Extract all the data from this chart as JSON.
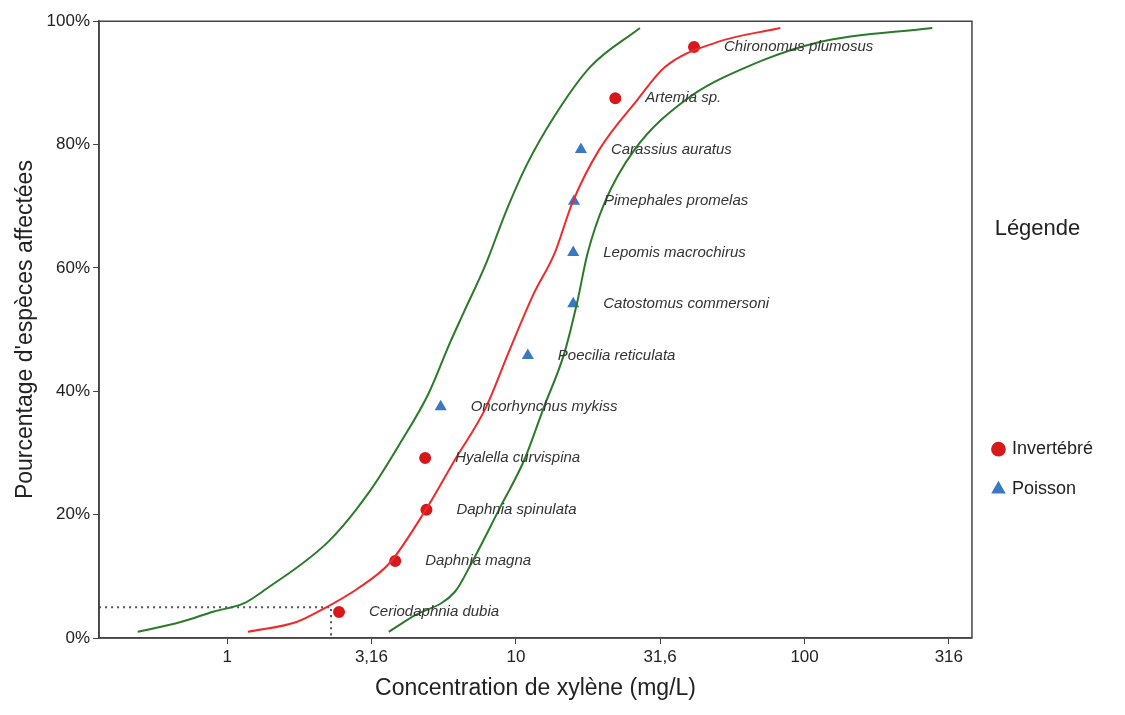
{
  "chart_data": {
    "type": "scatter",
    "xlabel": "Concentration de xylène (mg/L)",
    "ylabel": "Pourcentage d'espèces affectées",
    "legend_title": "Légende",
    "legend": "right",
    "grid": false,
    "log": "x",
    "xlim": [
      0.36,
      380
    ],
    "xticks": [
      1,
      {
        "value": 3.16,
        "label": "3,16"
      },
      10,
      {
        "value": 31.6,
        "label": "31,6"
      },
      100,
      316
    ],
    "ylim": [
      0,
      100
    ],
    "yticks": [
      {
        "value": 0,
        "label": "0%"
      },
      {
        "value": 20,
        "label": "20%"
      },
      {
        "value": 40,
        "label": "40%"
      },
      {
        "value": 60,
        "label": "60%"
      },
      {
        "value": 80,
        "label": "80%"
      },
      {
        "value": 100,
        "label": "100%"
      }
    ],
    "series": [
      {
        "type": "line",
        "color": "#2a7a2a",
        "marker": "none",
        "x": [
          0.49,
          0.69,
          0.9,
          1.14,
          1.36,
          2.25,
          3.12,
          4.0,
          4.98,
          5.89,
          6.6,
          7.88,
          9.16,
          10.9,
          13.6,
          18.1,
          26.9
        ],
        "values": [
          1,
          2.6,
          4.3,
          5.6,
          7.9,
          15.7,
          23.8,
          31.8,
          39.6,
          47.7,
          52.8,
          60.7,
          68.7,
          76.7,
          84.6,
          92.6,
          98.9
        ]
      },
      {
        "type": "line",
        "color": "#2a7a2a",
        "marker": "none",
        "x": [
          3.63,
          4.4,
          6.15,
          7.03,
          8.76,
          10.7,
          12.5,
          14.7,
          16.3,
          17.7,
          20.3,
          25.7,
          38.9,
          63.2,
          112,
          277
        ],
        "values": [
          1,
          3.5,
          7.5,
          12.2,
          20.9,
          28.9,
          37.4,
          46.1,
          54.4,
          62.3,
          70.6,
          79.1,
          87.3,
          92.6,
          96.6,
          98.9
        ]
      },
      {
        "type": "line",
        "color": "#ee2a2a",
        "marker": "none",
        "x": [
          1.18,
          1.74,
          2.17,
          2.81,
          3.66,
          4.89,
          6.15,
          7.88,
          9.4,
          11.5,
          13.6,
          15.7,
          19.4,
          26.4,
          32.9,
          49.8,
          82.4
        ],
        "values": [
          1,
          2.6,
          4.8,
          7.9,
          12.2,
          20.9,
          28.9,
          37.4,
          46.1,
          55.7,
          62.3,
          70.6,
          79.1,
          87.3,
          92.6,
          96.6,
          98.9
        ]
      },
      {
        "type": "line",
        "color": "#555555",
        "marker": "none",
        "line_style": "dotted",
        "x": [
          0.36,
          2.29,
          2.29
        ],
        "values": [
          5,
          5,
          0
        ]
      },
      {
        "type": "scatter",
        "name": "Invertébré",
        "color": "#d7191c",
        "marker": "circle",
        "x": [
          2.44,
          3.82,
          4.9,
          4.85,
          22.1,
          41.4
        ],
        "values": [
          4.2,
          12.5,
          20.8,
          29.2,
          87.5,
          95.8
        ]
      },
      {
        "type": "scatter",
        "name": "Poisson",
        "color": "#3a78c3",
        "marker": "triangle",
        "x": [
          5.49,
          11.0,
          15.8,
          15.8,
          15.9,
          16.8
        ],
        "values": [
          37.5,
          45.8,
          54.2,
          62.5,
          70.8,
          79.2
        ]
      }
    ],
    "annotations": [
      {
        "text": "Ceriodaphnia dubia",
        "x": 2.44,
        "y": 4.2
      },
      {
        "text": "Daphnia magna",
        "x": 3.82,
        "y": 12.5
      },
      {
        "text": "Daphnia spinulata",
        "x": 4.9,
        "y": 20.8
      },
      {
        "text": "Hyalella curvispina",
        "x": 4.85,
        "y": 29.2
      },
      {
        "text": "Oncorhynchus mykiss",
        "x": 5.49,
        "y": 37.5
      },
      {
        "text": "Poecilia reticulata",
        "x": 11.0,
        "y": 45.8
      },
      {
        "text": "Catostomus commersoni",
        "x": 15.8,
        "y": 54.2
      },
      {
        "text": "Lepomis macrochirus",
        "x": 15.8,
        "y": 62.5
      },
      {
        "text": "Pimephales promelas",
        "x": 15.9,
        "y": 70.8
      },
      {
        "text": "Carassius auratus",
        "x": 16.8,
        "y": 79.2
      },
      {
        "text": "Artemia sp.",
        "x": 22.1,
        "y": 87.5
      },
      {
        "text": "Chironomus plumosus",
        "x": 41.4,
        "y": 95.8
      }
    ]
  }
}
